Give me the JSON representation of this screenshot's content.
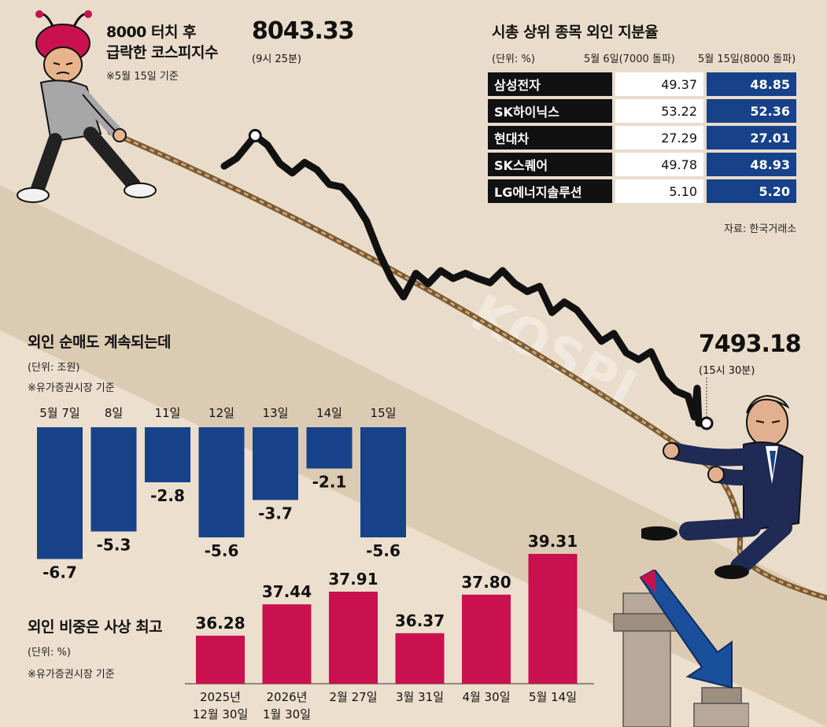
{
  "kospi": {
    "title_line1": "8000 터치 후",
    "title_line2": "급락한 코스피지수",
    "note": "※5월 15일 기준",
    "high_value": "8043.33",
    "high_time": "(9시 25분)",
    "close_value": "7493.18",
    "close_time": "(15시 30분)",
    "watermark": "KOSPI",
    "chart_data": {
      "type": "line",
      "title": "8000 터치 후 급락한 코스피지수",
      "xlabel": "",
      "ylabel": "",
      "x_start": "09:00",
      "x_end": "15:30",
      "ylim": [
        7460,
        8080
      ],
      "grid": false,
      "points": [
        [
          "09:00",
          7985
        ],
        [
          "09:10",
          8000
        ],
        [
          "09:25",
          8043.33
        ],
        [
          "09:35",
          8025
        ],
        [
          "09:45",
          7990
        ],
        [
          "09:55",
          7972
        ],
        [
          "10:05",
          7992
        ],
        [
          "10:15",
          7978
        ],
        [
          "10:25",
          7950
        ],
        [
          "10:35",
          7945
        ],
        [
          "10:45",
          7918
        ],
        [
          "10:55",
          7880
        ],
        [
          "11:05",
          7820
        ],
        [
          "11:15",
          7770
        ],
        [
          "11:25",
          7735
        ],
        [
          "11:35",
          7780
        ],
        [
          "11:45",
          7760
        ],
        [
          "11:55",
          7785
        ],
        [
          "12:05",
          7770
        ],
        [
          "12:15",
          7780
        ],
        [
          "12:25",
          7770
        ],
        [
          "12:35",
          7762
        ],
        [
          "12:45",
          7785
        ],
        [
          "12:55",
          7760
        ],
        [
          "13:05",
          7745
        ],
        [
          "13:15",
          7755
        ],
        [
          "13:25",
          7705
        ],
        [
          "13:35",
          7725
        ],
        [
          "13:45",
          7710
        ],
        [
          "13:55",
          7680
        ],
        [
          "14:05",
          7650
        ],
        [
          "14:15",
          7665
        ],
        [
          "14:25",
          7628
        ],
        [
          "14:35",
          7615
        ],
        [
          "14:45",
          7630
        ],
        [
          "14:55",
          7580
        ],
        [
          "15:05",
          7555
        ],
        [
          "15:15",
          7545
        ],
        [
          "15:20",
          7505
        ],
        [
          "15:30",
          7493.18
        ]
      ]
    }
  },
  "table": {
    "title": "시총 상위 종목 외인 지분율",
    "unit": "(단위: %)",
    "col1": "5월 6일(7000 돌파)",
    "col2": "5월 15일(8000 돌파)",
    "source": "자료: 한국거래소",
    "rows": [
      {
        "name": "삼성전자",
        "v1": "49.37",
        "v2": "48.85"
      },
      {
        "name": "SK하이닉스",
        "v1": "53.22",
        "v2": "52.36"
      },
      {
        "name": "현대차",
        "v1": "27.29",
        "v2": "27.01"
      },
      {
        "name": "SK스퀘어",
        "v1": "49.78",
        "v2": "48.93"
      },
      {
        "name": "LG에너지솔루션",
        "v1": "5.10",
        "v2": "5.20"
      }
    ]
  },
  "netsell": {
    "title": "외인 순매도 계속되는데",
    "unit": "(단위: 조원)",
    "note": "※유가증권시장 기준",
    "chart_data": {
      "type": "bar",
      "title": "외인 순매도 계속되는데",
      "categories": [
        "5월 7일",
        "8일",
        "11일",
        "12일",
        "13일",
        "14일",
        "15일"
      ],
      "values": [
        -6.7,
        -5.3,
        -2.8,
        -5.6,
        -3.7,
        -2.1,
        -5.6
      ],
      "labels": [
        "-6.7",
        "-5.3",
        "-2.8",
        "-5.6",
        "-3.7",
        "-2.1",
        "-5.6"
      ],
      "ylim": [
        -7,
        0
      ],
      "color": "#17428a"
    }
  },
  "ratio": {
    "title": "외인 비중은 사상 최고",
    "unit": "(단위: %)",
    "note": "※유가증권시장 기준",
    "chart_data": {
      "type": "bar",
      "title": "외인 비중은 사상 최고",
      "categories": [
        "2025년 12월 30일",
        "2026년 1월 30일",
        "2월 27일",
        "3월 31일",
        "4월 30일",
        "5월 14일"
      ],
      "category_lines": [
        [
          "2025년",
          "12월 30일"
        ],
        [
          "2026년",
          "1월 30일"
        ],
        [
          "2월 27일"
        ],
        [
          "3월 31일"
        ],
        [
          "4월 30일"
        ],
        [
          "5월 14일"
        ]
      ],
      "values": [
        36.28,
        37.44,
        37.91,
        36.37,
        37.8,
        39.31
      ],
      "labels": [
        "36.28",
        "37.44",
        "37.91",
        "36.37",
        "37.80",
        "39.31"
      ],
      "ylim": [
        34.5,
        39.6
      ],
      "color": "#c8114e"
    }
  },
  "colors": {
    "background": "#e9dccb",
    "diagonal_band": "#d7c4aa",
    "navy": "#17428a",
    "crimson": "#c8114e",
    "line": "#111111"
  },
  "illustration": {
    "left_figure": "ant-hat-investor-pulling-rope",
    "right_figure": "foreign-businessman-pulling-rope",
    "down_arrow": "blue-down-arrow-icon"
  }
}
